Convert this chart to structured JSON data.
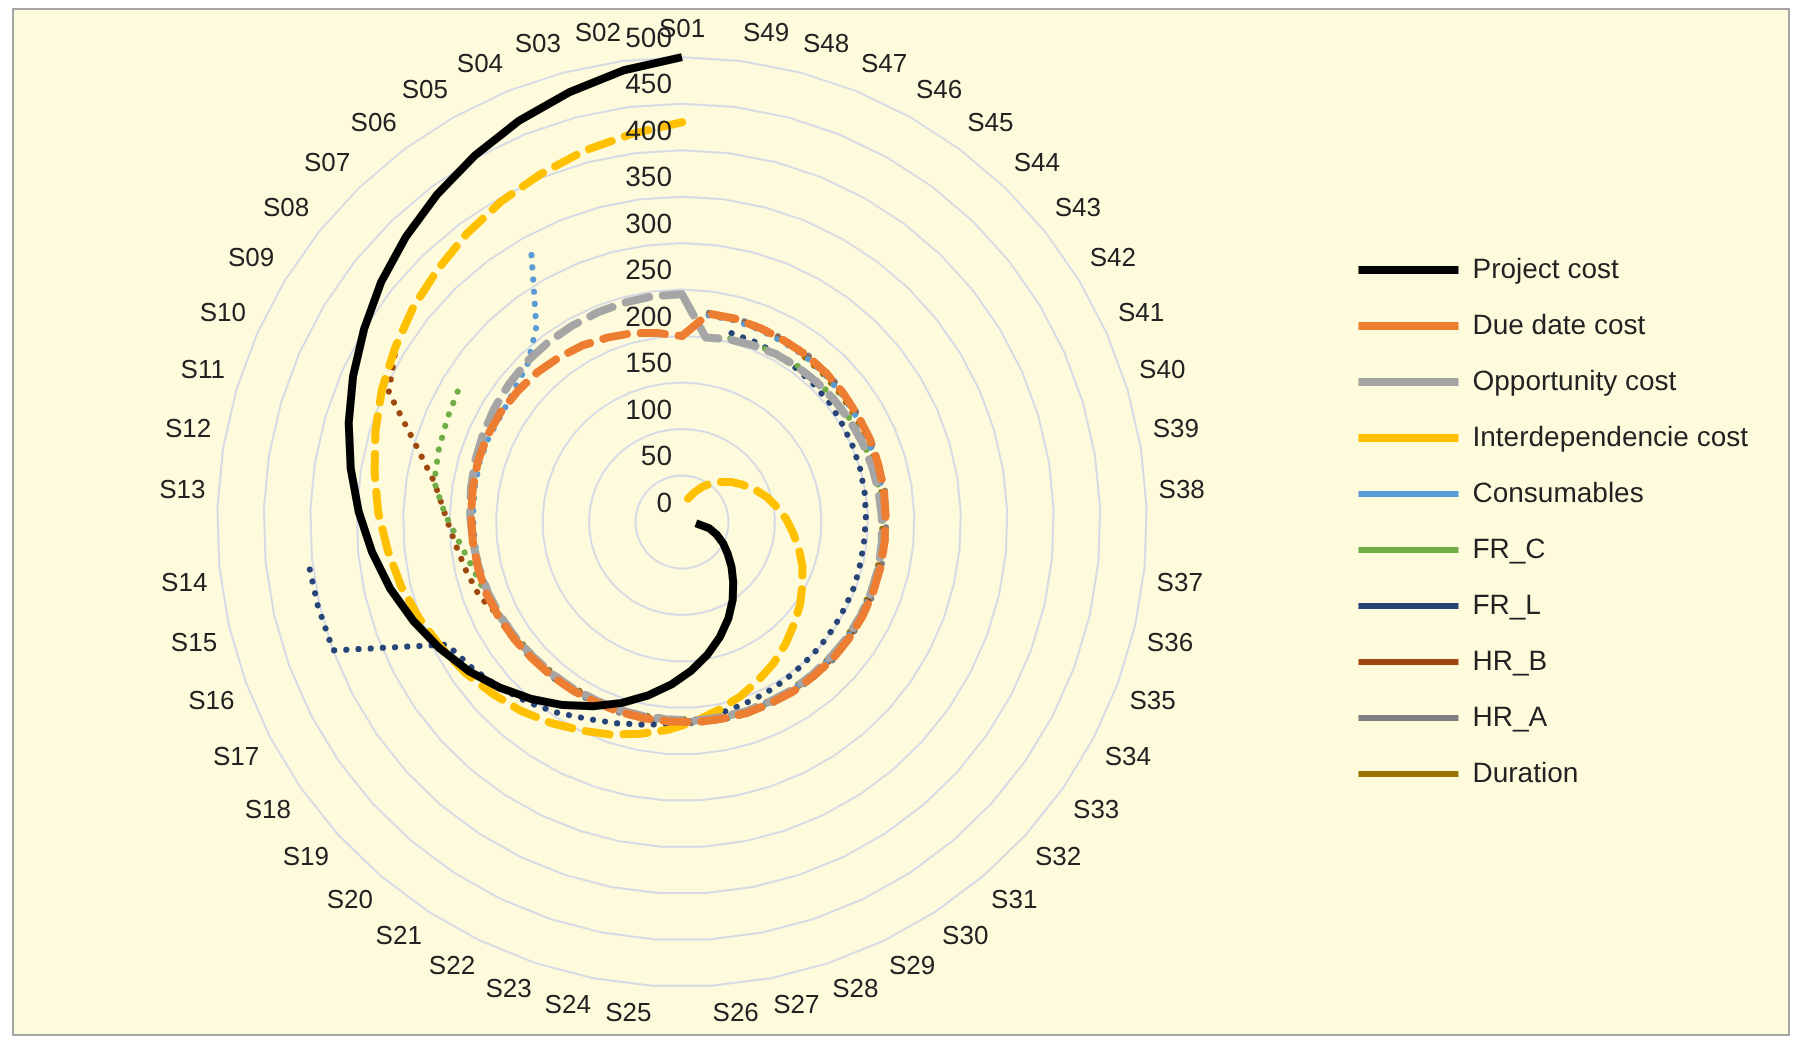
{
  "chart_data": {
    "type": "radar",
    "categories": [
      "S01",
      "S49",
      "S48",
      "S47",
      "S46",
      "S45",
      "S44",
      "S43",
      "S42",
      "S41",
      "S40",
      "S39",
      "S38",
      "S37",
      "S36",
      "S35",
      "S34",
      "S33",
      "S32",
      "S31",
      "S30",
      "S29",
      "S28",
      "S27",
      "S26",
      "S25",
      "S24",
      "S23",
      "S22",
      "S21",
      "S20",
      "S19",
      "S18",
      "S17",
      "S16",
      "S15",
      "S14",
      "S13",
      "S12",
      "S11",
      "S10",
      "S09",
      "S08",
      "S07",
      "S06",
      "S05",
      "S04",
      "S03",
      "S02"
    ],
    "ylim": [
      0,
      500
    ],
    "yticks": [
      0,
      50,
      100,
      150,
      200,
      250,
      300,
      350,
      400,
      450,
      500
    ],
    "grid": true,
    "legend": "right",
    "marker": "none",
    "series": [
      {
        "name": "Project cost",
        "color": "#000000",
        "line_style": "solid",
        "values": [
          500,
          null,
          null,
          null,
          null,
          null,
          null,
          null,
          null,
          null,
          null,
          null,
          null,
          15,
          30,
          40,
          50,
          60,
          72,
          85,
          100,
          115,
          130,
          145,
          160,
          175,
          190,
          205,
          220,
          235,
          250,
          265,
          280,
          294,
          308,
          322,
          335,
          348,
          361,
          374,
          387,
          400,
          414,
          427,
          440,
          453,
          466,
          478,
          490
        ]
      },
      {
        "name": "Due date cost",
        "color": "#ed7d31",
        "line_style": "dashed",
        "values": [
          200,
          226,
          226,
          225,
          224,
          224,
          223,
          222,
          221,
          221,
          220,
          220,
          219,
          219,
          219,
          219,
          219,
          219,
          219,
          218,
          218,
          217,
          217,
          216,
          216,
          215,
          215,
          215,
          215,
          216,
          217,
          218,
          220,
          222,
          224,
          225,
          226,
          227,
          228,
          229,
          229,
          228,
          226,
          224,
          221,
          218,
          214,
          210,
          205
        ]
      },
      {
        "name": "Opportunity cost",
        "color": "#a5a5a5",
        "line_style": "dashed",
        "values": [
          245,
          200,
          203,
          205,
          207,
          208,
          209,
          210,
          211,
          212,
          213,
          214,
          215,
          216,
          217,
          217,
          217,
          217,
          216,
          216,
          216,
          215,
          215,
          214,
          214,
          213,
          213,
          213,
          213,
          214,
          215,
          216,
          218,
          220,
          222,
          224,
          226,
          228,
          230,
          232,
          234,
          236,
          238,
          240,
          241,
          242,
          243,
          244,
          245
        ]
      },
      {
        "name": "Interdependencie cost",
        "color": "#ffc000",
        "line_style": "dashed",
        "values": [
          430,
          null,
          26,
          34,
          43,
          52,
          60,
          69,
          77,
          86,
          95,
          103,
          112,
          120,
          129,
          138,
          146,
          155,
          163,
          172,
          181,
          189,
          198,
          206,
          215,
          224,
          232,
          241,
          249,
          258,
          267,
          275,
          284,
          292,
          301,
          310,
          318,
          327,
          335,
          344,
          353,
          361,
          370,
          378,
          387,
          396,
          404,
          413,
          421
        ]
      },
      {
        "name": "Consumables",
        "color": "#5b9bd5",
        "line_style": "dotted",
        "values": [
          null,
          224,
          224,
          223,
          222,
          222,
          221,
          220,
          219,
          219,
          218,
          218,
          217,
          217,
          217,
          217,
          217,
          217,
          217,
          216,
          216,
          215,
          215,
          214,
          214,
          213,
          213,
          213,
          213,
          214,
          215,
          216,
          218,
          220,
          222,
          223,
          224,
          225,
          226,
          227,
          227,
          226,
          230,
          238,
          262,
          330,
          null,
          null,
          null
        ]
      },
      {
        "name": "FR_C",
        "color": "#70ad47",
        "line_style": "dotted",
        "values": [
          null,
          201,
          204,
          206,
          208,
          209,
          210,
          211,
          212,
          213,
          214,
          215,
          216,
          217,
          218,
          218,
          218,
          218,
          217,
          217,
          217,
          216,
          216,
          215,
          215,
          214,
          214,
          214,
          214,
          215,
          216,
          217,
          219,
          221,
          225,
          230,
          240,
          255,
          270,
          273,
          276,
          280,
          null,
          null,
          null,
          null,
          null,
          null,
          null
        ]
      },
      {
        "name": "FR_L",
        "color": "#264478",
        "line_style": "dotted",
        "values": [
          null,
          null,
          210,
          209,
          208,
          206,
          205,
          204,
          202,
          201,
          200,
          199,
          198,
          197,
          197,
          198,
          198,
          199,
          200,
          201,
          203,
          205,
          207,
          210,
          214,
          218,
          222,
          228,
          235,
          245,
          255,
          265,
          275,
          285,
          400,
          402,
          405,
          null,
          null,
          null,
          null,
          null,
          null,
          null,
          null,
          null,
          null,
          null,
          null
        ]
      },
      {
        "name": "HR_B",
        "color": "#9e480e",
        "line_style": "dotted",
        "values": [
          null,
          225,
          225,
          224,
          223,
          223,
          222,
          221,
          220,
          220,
          219,
          219,
          218,
          218,
          218,
          218,
          218,
          218,
          218,
          217,
          217,
          216,
          216,
          215,
          215,
          214,
          214,
          214,
          214,
          215,
          216,
          217,
          219,
          221,
          232,
          238,
          245,
          255,
          270,
          300,
          345,
          360,
          null,
          null,
          null,
          null,
          null,
          null,
          null
        ]
      },
      {
        "name": "HR_A",
        "color": "#7f7f7f",
        "line_style": "dotted",
        "values": [
          null,
          227,
          227,
          226,
          225,
          225,
          224,
          223,
          222,
          222,
          221,
          221,
          220,
          220,
          220,
          220,
          220,
          220,
          220,
          219,
          219,
          218,
          218,
          217,
          217,
          216,
          216,
          216,
          216,
          217,
          218,
          219,
          221,
          223,
          225,
          226,
          null,
          null,
          null,
          null,
          null,
          null,
          null,
          null,
          null,
          null,
          null,
          null,
          null
        ]
      },
      {
        "name": "Duration",
        "color": "#997300",
        "line_style": "dotted",
        "values": [
          null,
          null,
          null,
          null,
          null,
          221,
          220,
          219,
          218,
          218,
          217,
          217,
          216,
          216,
          216,
          216,
          216,
          216,
          216,
          215,
          215,
          214,
          214,
          213,
          213,
          212,
          212,
          212,
          212,
          213,
          214,
          215,
          217,
          219,
          null,
          null,
          null,
          null,
          null,
          null,
          null,
          null,
          null,
          null,
          null,
          null,
          null,
          null,
          null
        ]
      }
    ]
  }
}
